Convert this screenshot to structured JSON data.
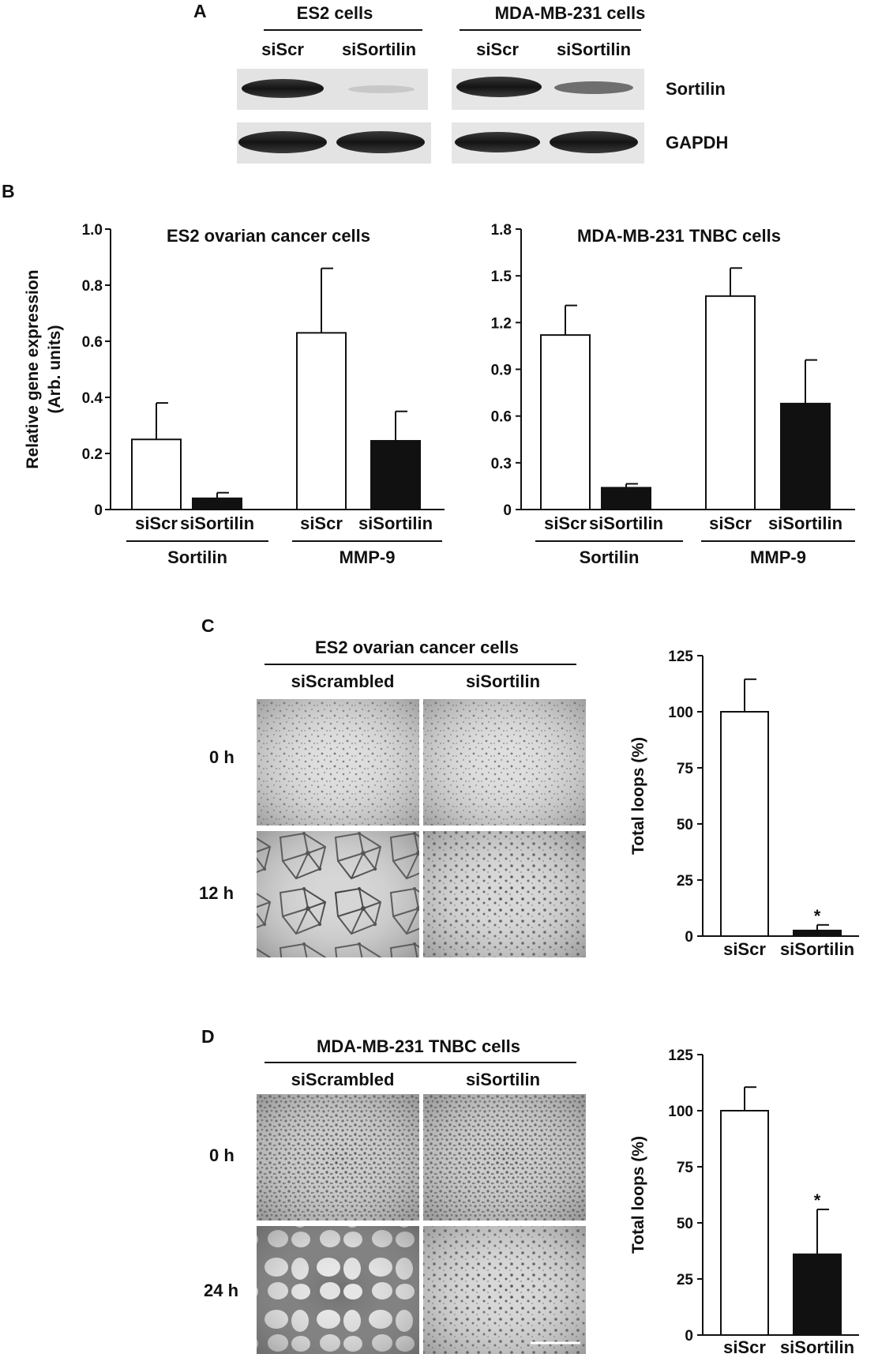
{
  "panel_letters": [
    "A",
    "B",
    "C",
    "D"
  ],
  "blot": {
    "groups": [
      "ES2 cells",
      "MDA-MB-231 cells"
    ],
    "lanes": [
      "siScr",
      "siSortilin",
      "siScr",
      "siSortilin"
    ],
    "proteins": [
      "Sortilin",
      "GAPDH"
    ]
  },
  "micro": {
    "c_title": "ES2 ovarian cancer cells",
    "d_title": "MDA-MB-231 TNBC cells",
    "columns": [
      "siScrambled",
      "siSortilin"
    ],
    "c_rows": [
      "0 h",
      "12 h"
    ],
    "d_rows": [
      "0 h",
      "24 h"
    ]
  },
  "chart_data": [
    {
      "type": "bar",
      "panel": "B",
      "title": "ES2 ovarian cancer cells",
      "ylabel": [
        "Relative gene expression",
        "(Arb. units)"
      ],
      "ylim": [
        0,
        1.0
      ],
      "yticks": [
        "0",
        "0.2",
        "0.4",
        "0.6",
        "0.8",
        "1.0"
      ],
      "categories": [
        "siScr",
        "siSortilin",
        "siScr",
        "siSortilin"
      ],
      "groups": [
        "Sortilin",
        "MMP-9"
      ],
      "values": [
        0.25,
        0.04,
        0.63,
        0.245
      ],
      "errors": [
        0.13,
        0.02,
        0.23,
        0.105
      ],
      "fills": [
        "#ffffff",
        "#111111",
        "#ffffff",
        "#111111"
      ]
    },
    {
      "type": "bar",
      "panel": "B",
      "title": "MDA-MB-231 TNBC cells",
      "ylim": [
        0,
        1.8
      ],
      "yticks": [
        "0",
        "0.3",
        "0.6",
        "0.9",
        "1.2",
        "1.5",
        "1.8"
      ],
      "categories": [
        "siScr",
        "siSortilin",
        "siScr",
        "siSortilin"
      ],
      "groups": [
        "Sortilin",
        "MMP-9"
      ],
      "values": [
        1.12,
        0.14,
        1.37,
        0.68
      ],
      "errors": [
        0.19,
        0.025,
        0.18,
        0.28
      ],
      "fills": [
        "#ffffff",
        "#111111",
        "#ffffff",
        "#111111"
      ]
    },
    {
      "type": "bar",
      "panel": "C",
      "ylabel": "Total loops (%)",
      "ylim": [
        0,
        125
      ],
      "yticks": [
        "0",
        "25",
        "50",
        "75",
        "100",
        "125"
      ],
      "categories": [
        "siScr",
        "siSortilin"
      ],
      "values": [
        100,
        2.5
      ],
      "errors": [
        14.5,
        2.5
      ],
      "fills": [
        "#ffffff",
        "#111111"
      ],
      "annotations": [
        "",
        "*"
      ]
    },
    {
      "type": "bar",
      "panel": "D",
      "ylabel": "Total loops (%)",
      "ylim": [
        0,
        125
      ],
      "yticks": [
        "0",
        "25",
        "50",
        "75",
        "100",
        "125"
      ],
      "categories": [
        "siScr",
        "siSortilin"
      ],
      "values": [
        100,
        36
      ],
      "errors": [
        10.5,
        20
      ],
      "fills": [
        "#ffffff",
        "#111111"
      ],
      "annotations": [
        "",
        "*"
      ]
    }
  ]
}
